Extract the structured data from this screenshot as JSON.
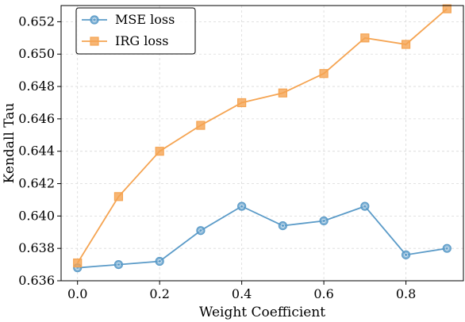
{
  "chart_data": {
    "type": "line",
    "title": "",
    "xlabel": "Weight Coefficient",
    "ylabel": "Kendall Tau",
    "xlim": [
      -0.04,
      0.94
    ],
    "ylim": [
      0.636,
      0.653
    ],
    "xticks": [
      0.0,
      0.2,
      0.4,
      0.6,
      0.8
    ],
    "xtick_labels": [
      "0.0",
      "0.2",
      "0.4",
      "0.6",
      "0.8"
    ],
    "yticks": [
      0.636,
      0.638,
      0.64,
      0.642,
      0.644,
      0.646,
      0.648,
      0.65,
      0.652
    ],
    "ytick_labels": [
      "0.636",
      "0.638",
      "0.640",
      "0.642",
      "0.644",
      "0.646",
      "0.648",
      "0.650",
      "0.652"
    ],
    "grid": true,
    "legend_position": "top-left",
    "x": [
      0.0,
      0.1,
      0.2,
      0.3,
      0.4,
      0.5,
      0.6,
      0.7,
      0.8,
      0.9
    ],
    "series": [
      {
        "name": "MSE loss",
        "color": "#5b9bc8",
        "marker": "circle",
        "values": [
          0.6368,
          0.637,
          0.6372,
          0.6391,
          0.6406,
          0.6394,
          0.6397,
          0.6406,
          0.6376,
          0.638
        ]
      },
      {
        "name": "IRG loss",
        "color": "#f5a452",
        "marker": "square",
        "values": [
          0.6371,
          0.6412,
          0.644,
          0.6456,
          0.647,
          0.6476,
          0.6488,
          0.651,
          0.6506,
          0.6528
        ]
      }
    ]
  }
}
